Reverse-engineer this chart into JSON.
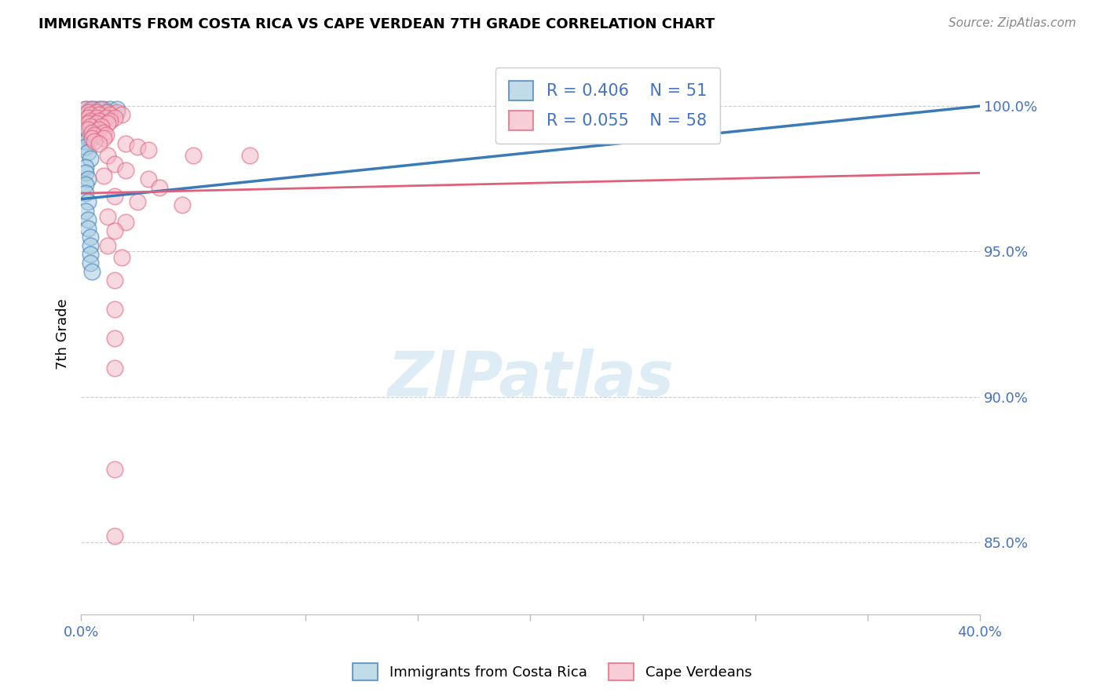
{
  "title": "IMMIGRANTS FROM COSTA RICA VS CAPE VERDEAN 7TH GRADE CORRELATION CHART",
  "source": "Source: ZipAtlas.com",
  "ylabel": "7th Grade",
  "watermark": "ZIPatlas",
  "legend_r1": "R = 0.406",
  "legend_n1": "N = 51",
  "legend_r2": "R = 0.055",
  "legend_n2": "N = 58",
  "blue_color": "#a8cce0",
  "pink_color": "#f4b8c8",
  "blue_line_color": "#3a7ab8",
  "pink_line_color": "#e0607a",
  "x_range": [
    0.0,
    0.4
  ],
  "y_range": [
    0.825,
    1.018
  ],
  "blue_scatter": [
    [
      0.002,
      0.999
    ],
    [
      0.004,
      0.999
    ],
    [
      0.006,
      0.999
    ],
    [
      0.008,
      0.999
    ],
    [
      0.01,
      0.999
    ],
    [
      0.013,
      0.999
    ],
    [
      0.016,
      0.999
    ],
    [
      0.003,
      0.998
    ],
    [
      0.005,
      0.998
    ],
    [
      0.007,
      0.998
    ],
    [
      0.011,
      0.998
    ],
    [
      0.002,
      0.997
    ],
    [
      0.004,
      0.997
    ],
    [
      0.007,
      0.997
    ],
    [
      0.009,
      0.997
    ],
    [
      0.003,
      0.996
    ],
    [
      0.006,
      0.996
    ],
    [
      0.009,
      0.996
    ],
    [
      0.002,
      0.995
    ],
    [
      0.005,
      0.995
    ],
    [
      0.008,
      0.995
    ],
    [
      0.002,
      0.994
    ],
    [
      0.004,
      0.994
    ],
    [
      0.007,
      0.994
    ],
    [
      0.003,
      0.993
    ],
    [
      0.006,
      0.993
    ],
    [
      0.002,
      0.992
    ],
    [
      0.005,
      0.992
    ],
    [
      0.003,
      0.991
    ],
    [
      0.006,
      0.991
    ],
    [
      0.002,
      0.99
    ],
    [
      0.004,
      0.99
    ],
    [
      0.003,
      0.989
    ],
    [
      0.002,
      0.988
    ],
    [
      0.002,
      0.986
    ],
    [
      0.003,
      0.984
    ],
    [
      0.004,
      0.982
    ],
    [
      0.002,
      0.979
    ],
    [
      0.002,
      0.977
    ],
    [
      0.003,
      0.975
    ],
    [
      0.002,
      0.973
    ],
    [
      0.002,
      0.97
    ],
    [
      0.003,
      0.967
    ],
    [
      0.002,
      0.964
    ],
    [
      0.003,
      0.961
    ],
    [
      0.003,
      0.958
    ],
    [
      0.004,
      0.955
    ],
    [
      0.004,
      0.952
    ],
    [
      0.004,
      0.949
    ],
    [
      0.004,
      0.946
    ],
    [
      0.005,
      0.943
    ]
  ],
  "pink_scatter": [
    [
      0.002,
      0.999
    ],
    [
      0.005,
      0.999
    ],
    [
      0.009,
      0.999
    ],
    [
      0.003,
      0.998
    ],
    [
      0.007,
      0.998
    ],
    [
      0.012,
      0.998
    ],
    [
      0.016,
      0.998
    ],
    [
      0.004,
      0.997
    ],
    [
      0.008,
      0.997
    ],
    [
      0.013,
      0.997
    ],
    [
      0.018,
      0.997
    ],
    [
      0.003,
      0.996
    ],
    [
      0.007,
      0.996
    ],
    [
      0.011,
      0.996
    ],
    [
      0.015,
      0.996
    ],
    [
      0.004,
      0.995
    ],
    [
      0.008,
      0.995
    ],
    [
      0.013,
      0.995
    ],
    [
      0.003,
      0.994
    ],
    [
      0.007,
      0.994
    ],
    [
      0.012,
      0.994
    ],
    [
      0.004,
      0.993
    ],
    [
      0.009,
      0.993
    ],
    [
      0.003,
      0.992
    ],
    [
      0.008,
      0.992
    ],
    [
      0.005,
      0.991
    ],
    [
      0.01,
      0.991
    ],
    [
      0.006,
      0.99
    ],
    [
      0.011,
      0.99
    ],
    [
      0.005,
      0.989
    ],
    [
      0.01,
      0.989
    ],
    [
      0.006,
      0.988
    ],
    [
      0.008,
      0.987
    ],
    [
      0.02,
      0.987
    ],
    [
      0.025,
      0.986
    ],
    [
      0.03,
      0.985
    ],
    [
      0.012,
      0.983
    ],
    [
      0.05,
      0.983
    ],
    [
      0.075,
      0.983
    ],
    [
      0.015,
      0.98
    ],
    [
      0.02,
      0.978
    ],
    [
      0.01,
      0.976
    ],
    [
      0.03,
      0.975
    ],
    [
      0.035,
      0.972
    ],
    [
      0.015,
      0.969
    ],
    [
      0.025,
      0.967
    ],
    [
      0.045,
      0.966
    ],
    [
      0.012,
      0.962
    ],
    [
      0.02,
      0.96
    ],
    [
      0.015,
      0.957
    ],
    [
      0.012,
      0.952
    ],
    [
      0.018,
      0.948
    ],
    [
      0.015,
      0.94
    ],
    [
      0.015,
      0.93
    ],
    [
      0.015,
      0.92
    ],
    [
      0.015,
      0.91
    ],
    [
      0.015,
      0.875
    ],
    [
      0.015,
      0.852
    ]
  ]
}
